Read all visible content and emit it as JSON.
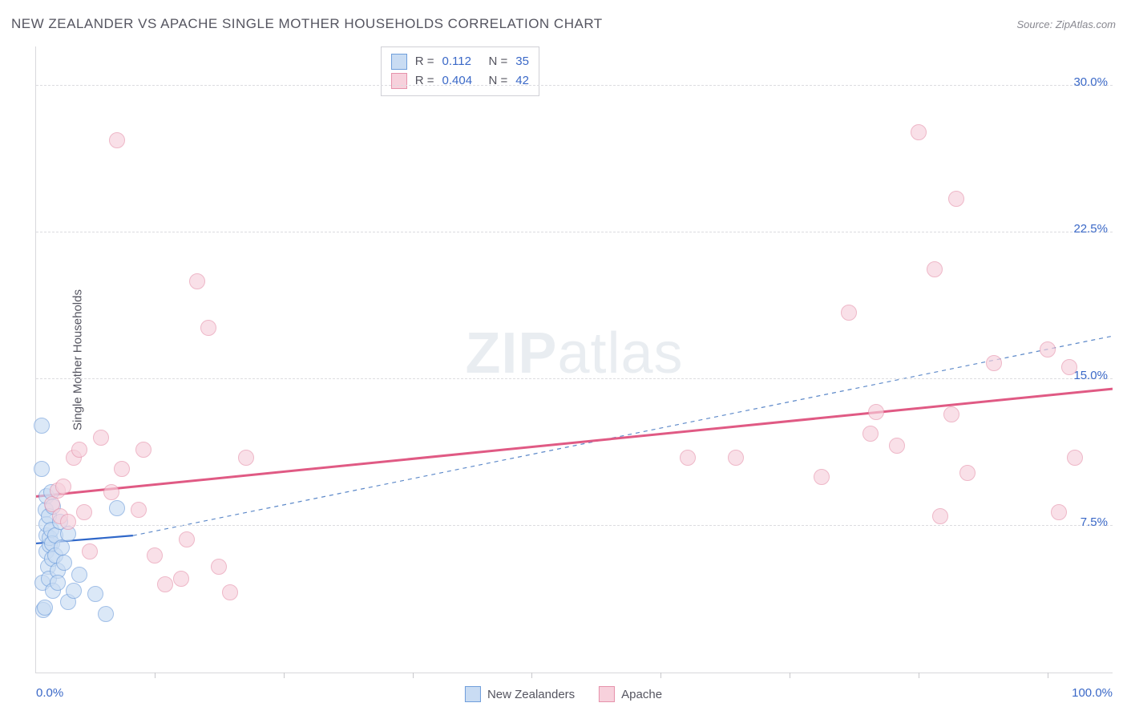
{
  "title": "NEW ZEALANDER VS APACHE SINGLE MOTHER HOUSEHOLDS CORRELATION CHART",
  "source": "Source: ZipAtlas.com",
  "watermark_a": "ZIP",
  "watermark_b": "atlas",
  "y_axis_title": "Single Mother Households",
  "chart": {
    "type": "scatter",
    "xlim": [
      0,
      100
    ],
    "ylim": [
      0,
      32
    ],
    "x_min_label": "0.0%",
    "x_max_label": "100.0%",
    "y_ticks": [
      {
        "v": 7.5,
        "label": "7.5%"
      },
      {
        "v": 15.0,
        "label": "15.0%"
      },
      {
        "v": 22.5,
        "label": "22.5%"
      },
      {
        "v": 30.0,
        "label": "30.0%"
      }
    ],
    "x_tick_positions": [
      11,
      23,
      35,
      46,
      58,
      70,
      82,
      94
    ],
    "background": "#ffffff",
    "grid_color": "#dcdce0",
    "axis_color": "#d8d8dc",
    "tick_label_color": "#3a68c7",
    "marker_radius": 10,
    "marker_stroke_width": 1.5,
    "series": [
      {
        "name": "New Zealanders",
        "fill": "#c9dcf3",
        "stroke": "#6f9edb",
        "fill_opacity": 0.65,
        "R": "0.112",
        "N": "35",
        "trend": {
          "x1": 0,
          "y1": 6.6,
          "x2": 9,
          "y2": 7.0,
          "color": "#2f67c9",
          "width": 2.2,
          "dash": "none"
        },
        "extrap": {
          "x1": 9,
          "y1": 7.0,
          "x2": 100,
          "y2": 17.2,
          "color": "#5d89c9",
          "width": 1.2,
          "dash": "5,5"
        },
        "points": [
          [
            0.5,
            12.6
          ],
          [
            0.5,
            10.4
          ],
          [
            0.6,
            4.6
          ],
          [
            0.7,
            3.2
          ],
          [
            0.8,
            3.3
          ],
          [
            0.9,
            8.3
          ],
          [
            1.0,
            6.2
          ],
          [
            1.0,
            7.0
          ],
          [
            1.0,
            7.6
          ],
          [
            1.0,
            9.0
          ],
          [
            1.1,
            5.4
          ],
          [
            1.2,
            8.0
          ],
          [
            1.2,
            4.8
          ],
          [
            1.3,
            6.5
          ],
          [
            1.3,
            6.9
          ],
          [
            1.4,
            9.2
          ],
          [
            1.4,
            7.3
          ],
          [
            1.5,
            5.8
          ],
          [
            1.5,
            6.6
          ],
          [
            1.6,
            8.5
          ],
          [
            1.6,
            4.2
          ],
          [
            1.8,
            7.0
          ],
          [
            1.8,
            6.0
          ],
          [
            2.0,
            5.2
          ],
          [
            2.0,
            4.6
          ],
          [
            2.2,
            7.7
          ],
          [
            2.4,
            6.4
          ],
          [
            2.6,
            5.6
          ],
          [
            3.0,
            7.1
          ],
          [
            3.0,
            3.6
          ],
          [
            3.5,
            4.2
          ],
          [
            4.0,
            5.0
          ],
          [
            5.5,
            4.0
          ],
          [
            6.5,
            3.0
          ],
          [
            7.5,
            8.4
          ]
        ]
      },
      {
        "name": "Apache",
        "fill": "#f7d1dc",
        "stroke": "#e692ab",
        "fill_opacity": 0.65,
        "R": "0.404",
        "N": "42",
        "trend": {
          "x1": 0,
          "y1": 9.0,
          "x2": 100,
          "y2": 14.5,
          "color": "#e05a84",
          "width": 3,
          "dash": "none"
        },
        "extrap": null,
        "points": [
          [
            1.5,
            8.6
          ],
          [
            2.0,
            9.3
          ],
          [
            2.2,
            8.0
          ],
          [
            2.5,
            9.5
          ],
          [
            3.0,
            7.7
          ],
          [
            3.5,
            11.0
          ],
          [
            4.0,
            11.4
          ],
          [
            4.5,
            8.2
          ],
          [
            5.0,
            6.2
          ],
          [
            6.0,
            12.0
          ],
          [
            7.0,
            9.2
          ],
          [
            7.5,
            27.2
          ],
          [
            8.0,
            10.4
          ],
          [
            9.5,
            8.3
          ],
          [
            10.0,
            11.4
          ],
          [
            11.0,
            6.0
          ],
          [
            12.0,
            4.5
          ],
          [
            13.5,
            4.8
          ],
          [
            14.0,
            6.8
          ],
          [
            15.0,
            20.0
          ],
          [
            16.0,
            17.6
          ],
          [
            17.0,
            5.4
          ],
          [
            18.0,
            4.1
          ],
          [
            19.5,
            11.0
          ],
          [
            60.5,
            11.0
          ],
          [
            65.0,
            11.0
          ],
          [
            73.0,
            10.0
          ],
          [
            75.5,
            18.4
          ],
          [
            77.5,
            12.2
          ],
          [
            78.0,
            13.3
          ],
          [
            80.0,
            11.6
          ],
          [
            82.0,
            27.6
          ],
          [
            83.5,
            20.6
          ],
          [
            84.0,
            8.0
          ],
          [
            85.0,
            13.2
          ],
          [
            85.5,
            24.2
          ],
          [
            86.5,
            10.2
          ],
          [
            89.0,
            15.8
          ],
          [
            94.0,
            16.5
          ],
          [
            95.0,
            8.2
          ],
          [
            96.0,
            15.6
          ],
          [
            96.5,
            11.0
          ]
        ]
      }
    ]
  },
  "legend": {
    "r_label": "R =",
    "n_label": "N ="
  }
}
